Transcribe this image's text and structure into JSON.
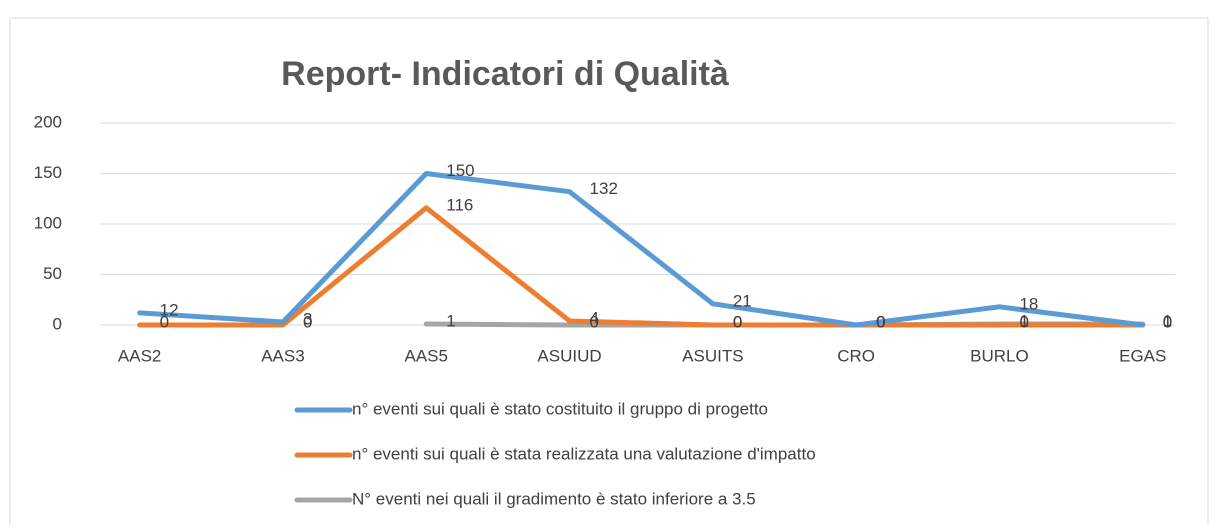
{
  "chart_data": {
    "type": "line",
    "title": "Report- Indicatori di Qualità",
    "categories": [
      "AAS2",
      "AAS3",
      "AAS5",
      "ASUIUD",
      "ASUITS",
      "CRO",
      "BURLO",
      "EGAS"
    ],
    "series": [
      {
        "name": "n° eventi sui quali è stato costituito il gruppo di progetto",
        "color": "#5b9bd5",
        "values": [
          12,
          3,
          150,
          132,
          21,
          0,
          18,
          0
        ]
      },
      {
        "name": "n° eventi sui quali è stata realizzata una valutazione d'impatto",
        "color": "#ed7d31",
        "values": [
          0,
          0,
          116,
          4,
          0,
          0,
          0,
          0
        ]
      },
      {
        "name": "N° eventi nei quali il gradimento è stato inferiore a 3.5",
        "color": "#a5a5a5",
        "values": [
          null,
          null,
          1,
          0,
          0,
          0,
          1,
          1
        ]
      }
    ],
    "ylim": [
      0,
      200
    ],
    "yticks": [
      0,
      50,
      100,
      150,
      200
    ],
    "grid": true,
    "legend": "bottom"
  }
}
